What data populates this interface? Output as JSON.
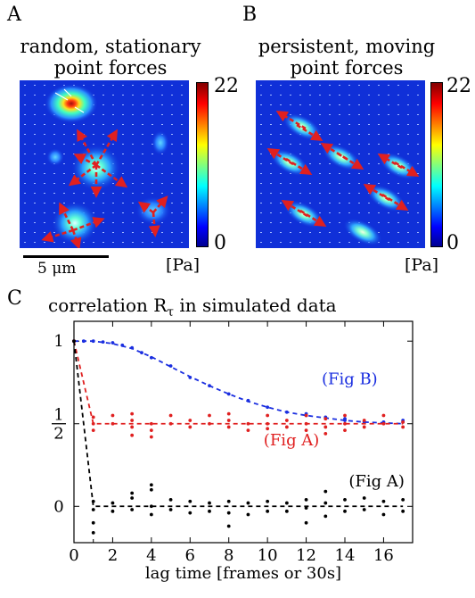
{
  "panels": {
    "a": {
      "letter": "A",
      "title_line1": "random, stationary",
      "title_line2": "point forces",
      "colorbar_max": "22",
      "colorbar_min": "0",
      "unit": "[Pa]",
      "scale_bar_label": "5 μm"
    },
    "b": {
      "letter": "B",
      "title_line1": "persistent, moving",
      "title_line2": "point forces",
      "colorbar_max": "22",
      "colorbar_min": "0",
      "unit": "[Pa]"
    },
    "c": {
      "letter": "C"
    }
  },
  "colors": {
    "field_bg": "#1030d8",
    "hotspot_peak": "#a01010",
    "arrow": "#e02020",
    "series_fig_b": "#1a2ee0",
    "series_fig_a_red": "#e02020",
    "series_fig_a_black": "#000000"
  },
  "chart_data": {
    "type": "scatter",
    "title": "correlation R_τ in simulated data",
    "title_main": "correlation R",
    "title_sub": "τ",
    "title_rest": " in simulated data",
    "xlabel": "lag time [frames or 30s]",
    "ylabel": "",
    "xlim": [
      0,
      17.5
    ],
    "ylim": [
      -0.22,
      1.12
    ],
    "x_ticks": [
      0,
      2,
      4,
      6,
      8,
      10,
      12,
      14,
      16
    ],
    "y_ticks": [
      {
        "value": 1,
        "label": "1"
      },
      {
        "value": 0.5,
        "label": "1/2",
        "numerator": "1",
        "denominator": "2"
      },
      {
        "value": 0,
        "label": "0"
      }
    ],
    "grid": false,
    "series": [
      {
        "name": "(Fig B)",
        "color": "#1a2ee0",
        "fit_x": [
          0,
          1,
          2,
          3,
          4,
          5,
          6,
          7,
          8,
          9,
          10,
          11,
          12,
          13,
          14,
          15,
          16,
          17
        ],
        "fit_y": [
          1.0,
          1.0,
          0.985,
          0.955,
          0.905,
          0.845,
          0.785,
          0.73,
          0.68,
          0.635,
          0.6,
          0.57,
          0.55,
          0.535,
          0.52,
          0.51,
          0.505,
          0.5
        ],
        "points_x": [
          0,
          1,
          2,
          3,
          4,
          5,
          6,
          7,
          8,
          9,
          10,
          11,
          12,
          13,
          14,
          15,
          16,
          17,
          0.5,
          1.5,
          2.5,
          3.5,
          12,
          13,
          14,
          15,
          16,
          17
        ],
        "points_y": [
          1.0,
          1.0,
          0.99,
          0.96,
          0.9,
          0.85,
          0.78,
          0.73,
          0.68,
          0.64,
          0.6,
          0.57,
          0.55,
          0.535,
          0.52,
          0.51,
          0.505,
          0.51,
          1.0,
          0.995,
          0.975,
          0.93,
          0.56,
          0.54,
          0.53,
          0.515,
          0.51,
          0.52
        ]
      },
      {
        "name": "(Fig A)",
        "color": "#e02020",
        "fit_x": [
          0,
          1,
          2,
          3,
          4,
          5,
          6,
          7,
          8,
          9,
          10,
          11,
          12,
          13,
          14,
          15,
          16,
          17
        ],
        "fit_y": [
          1.0,
          0.5,
          0.5,
          0.5,
          0.5,
          0.5,
          0.5,
          0.5,
          0.5,
          0.5,
          0.5,
          0.5,
          0.5,
          0.5,
          0.5,
          0.5,
          0.5,
          0.5
        ],
        "points_x": [
          0,
          1,
          1,
          1,
          2,
          2,
          3,
          3,
          3,
          3,
          4,
          4,
          4,
          5,
          5,
          6,
          6,
          7,
          7,
          8,
          8,
          8,
          9,
          9,
          10,
          10,
          10,
          11,
          11,
          12,
          12,
          12,
          13,
          13,
          13,
          14,
          14,
          14,
          15,
          15,
          16,
          16,
          17,
          17
        ],
        "points_y": [
          1.0,
          0.54,
          0.5,
          0.46,
          0.55,
          0.5,
          0.56,
          0.52,
          0.48,
          0.43,
          0.5,
          0.46,
          0.42,
          0.55,
          0.5,
          0.52,
          0.48,
          0.55,
          0.5,
          0.56,
          0.52,
          0.48,
          0.5,
          0.46,
          0.55,
          0.5,
          0.47,
          0.52,
          0.48,
          0.55,
          0.5,
          0.46,
          0.53,
          0.48,
          0.44,
          0.55,
          0.5,
          0.46,
          0.52,
          0.48,
          0.55,
          0.5,
          0.51,
          0.48
        ]
      },
      {
        "name": "(Fig A)",
        "color": "#000000",
        "fit_x": [
          0,
          1,
          2,
          3,
          4,
          5,
          6,
          7,
          8,
          9,
          10,
          11,
          12,
          13,
          14,
          15,
          16,
          17
        ],
        "fit_y": [
          1.0,
          0.0,
          0.0,
          0.0,
          0.0,
          0.0,
          0.0,
          0.0,
          0.0,
          0.0,
          0.0,
          0.0,
          0.0,
          0.0,
          0.0,
          0.0,
          0.0,
          0.0
        ],
        "points_x": [
          0,
          1,
          1,
          1,
          1,
          2,
          2,
          3,
          3,
          3,
          4,
          4,
          4,
          4,
          5,
          5,
          6,
          6,
          7,
          7,
          8,
          8,
          8,
          9,
          9,
          10,
          10,
          11,
          11,
          12,
          12,
          12,
          13,
          13,
          13,
          14,
          14,
          15,
          15,
          16,
          16,
          17,
          17
        ],
        "points_y": [
          1.0,
          0.03,
          -0.02,
          -0.1,
          -0.16,
          0.02,
          -0.03,
          0.08,
          0.05,
          -0.02,
          0.13,
          0.1,
          0.0,
          -0.05,
          0.04,
          -0.02,
          0.03,
          -0.04,
          0.02,
          -0.03,
          0.03,
          -0.04,
          -0.12,
          0.02,
          -0.05,
          0.03,
          -0.03,
          0.02,
          -0.03,
          0.04,
          -0.01,
          -0.1,
          0.09,
          0.02,
          -0.06,
          0.04,
          -0.03,
          0.05,
          -0.02,
          0.03,
          -0.05,
          0.04,
          -0.03
        ]
      }
    ],
    "annotations": [
      {
        "text": "(Fig B)",
        "color": "#1a2ee0",
        "at_x": 12.8,
        "at_y": 0.74
      },
      {
        "text": "(Fig A)",
        "color": "#e02020",
        "at_x": 9.8,
        "at_y": 0.37
      },
      {
        "text": "(Fig A)",
        "color": "#000000",
        "at_x": 14.2,
        "at_y": 0.12
      }
    ]
  }
}
